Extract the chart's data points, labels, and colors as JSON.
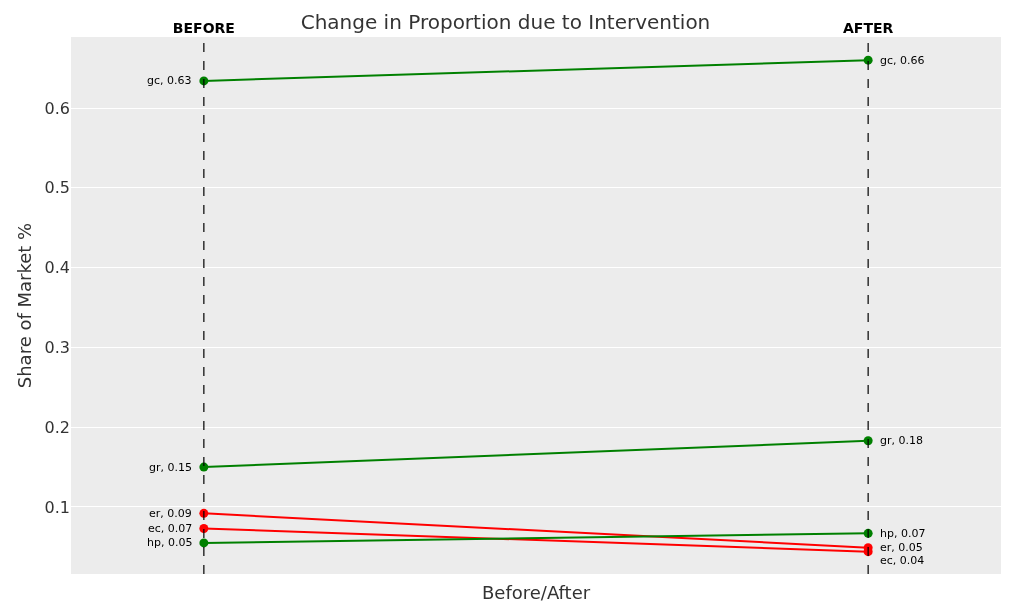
{
  "chart_data": {
    "type": "line",
    "title": "Change in Proportion due to Intervention",
    "xlabel": "Before/After",
    "ylabel": "Share of Market %",
    "categories": [
      "BEFORE",
      "AFTER"
    ],
    "series": [
      {
        "color": "#008000",
        "values": [
          0.634,
          0.66
        ],
        "value_labels": [
          "gc, 0.63",
          "gc, 0.66"
        ]
      },
      {
        "color": "#008000",
        "values": [
          0.15,
          0.183
        ],
        "value_labels": [
          "gr, 0.15",
          "gr, 0.18"
        ]
      },
      {
        "color": "#ff0000",
        "values": [
          0.092,
          0.049
        ],
        "value_labels": [
          "er, 0.09",
          "er, 0.05"
        ]
      },
      {
        "color": "#ff0000",
        "values": [
          0.073,
          0.044
        ],
        "value_labels": [
          "ec, 0.07",
          "ec, 0.04"
        ]
      },
      {
        "color": "#008000",
        "values": [
          0.055,
          0.067
        ],
        "value_labels": [
          "hp, 0.05",
          "hp, 0.07"
        ]
      }
    ],
    "ylim": [
      0.016,
      0.689
    ],
    "yticks": [
      0.1,
      0.2,
      0.3,
      0.4,
      0.5,
      0.6
    ],
    "ref_lines": [
      {
        "axis": "x",
        "value": "BEFORE",
        "color": "#000000",
        "line_style": "dashed"
      },
      {
        "axis": "x",
        "value": "AFTER",
        "color": "#000000",
        "line_style": "dashed"
      }
    ],
    "grid": "y",
    "marker": "circle",
    "line_style": "solid",
    "legend": false
  }
}
